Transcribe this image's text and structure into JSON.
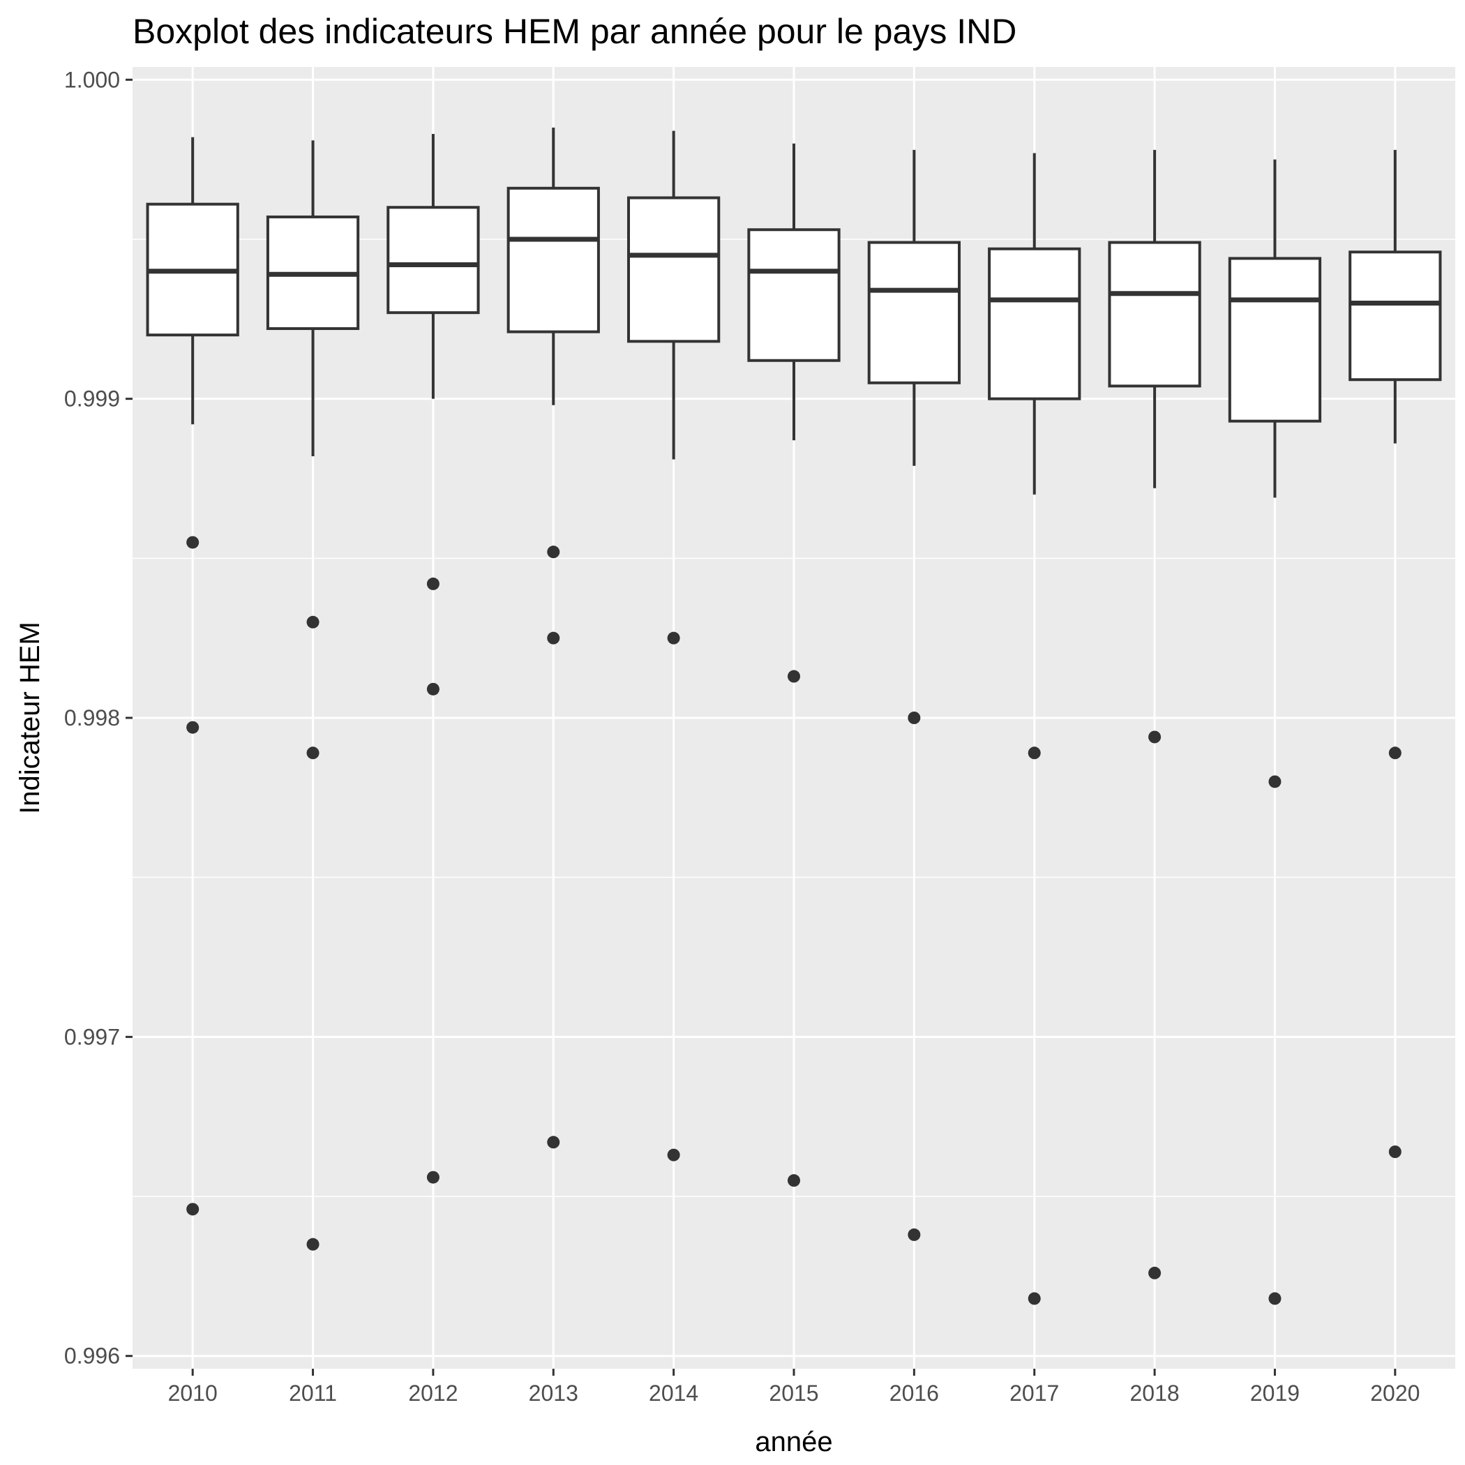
{
  "chart_data": {
    "type": "boxplot",
    "title": "Boxplot des indicateurs HEM par année pour le pays IND",
    "xlabel": "année",
    "ylabel": "Indicateur HEM",
    "ylim": [
      0.99596,
      1.00004
    ],
    "yticks": [
      {
        "value": 0.996,
        "label": "0.996"
      },
      {
        "value": 0.997,
        "label": "0.997"
      },
      {
        "value": 0.998,
        "label": "0.998"
      },
      {
        "value": 0.999,
        "label": "0.999"
      },
      {
        "value": 1.0,
        "label": "1.000"
      }
    ],
    "grid": true,
    "categories": [
      "2010",
      "2011",
      "2012",
      "2013",
      "2014",
      "2015",
      "2016",
      "2017",
      "2018",
      "2019",
      "2020"
    ],
    "boxes": [
      {
        "lower": 0.99892,
        "q1": 0.9992,
        "median": 0.9994,
        "q3": 0.99961,
        "upper": 0.99982,
        "outliers": [
          0.99855,
          0.99797,
          0.99646
        ]
      },
      {
        "lower": 0.99882,
        "q1": 0.99922,
        "median": 0.99939,
        "q3": 0.99957,
        "upper": 0.99981,
        "outliers": [
          0.9983,
          0.99789,
          0.99635
        ]
      },
      {
        "lower": 0.999,
        "q1": 0.99927,
        "median": 0.99942,
        "q3": 0.9996,
        "upper": 0.99983,
        "outliers": [
          0.99842,
          0.99809,
          0.99656
        ]
      },
      {
        "lower": 0.99898,
        "q1": 0.99921,
        "median": 0.9995,
        "q3": 0.99966,
        "upper": 0.99985,
        "outliers": [
          0.99852,
          0.99825,
          0.99667
        ]
      },
      {
        "lower": 0.99881,
        "q1": 0.99918,
        "median": 0.99945,
        "q3": 0.99963,
        "upper": 0.99984,
        "outliers": [
          0.99825,
          0.99663
        ]
      },
      {
        "lower": 0.99887,
        "q1": 0.99912,
        "median": 0.9994,
        "q3": 0.99953,
        "upper": 0.9998,
        "outliers": [
          0.99813,
          0.99655
        ]
      },
      {
        "lower": 0.99879,
        "q1": 0.99905,
        "median": 0.99934,
        "q3": 0.99949,
        "upper": 0.99978,
        "outliers": [
          0.998,
          0.99638
        ]
      },
      {
        "lower": 0.9987,
        "q1": 0.999,
        "median": 0.99931,
        "q3": 0.99947,
        "upper": 0.99977,
        "outliers": [
          0.99789,
          0.99618
        ]
      },
      {
        "lower": 0.99872,
        "q1": 0.99904,
        "median": 0.99933,
        "q3": 0.99949,
        "upper": 0.99978,
        "outliers": [
          0.99794,
          0.99626
        ]
      },
      {
        "lower": 0.99869,
        "q1": 0.99893,
        "median": 0.99931,
        "q3": 0.99944,
        "upper": 0.99975,
        "outliers": [
          0.9978,
          0.99618
        ]
      },
      {
        "lower": 0.99886,
        "q1": 0.99906,
        "median": 0.9993,
        "q3": 0.99946,
        "upper": 0.99978,
        "outliers": [
          0.99789,
          0.99664
        ]
      }
    ]
  }
}
